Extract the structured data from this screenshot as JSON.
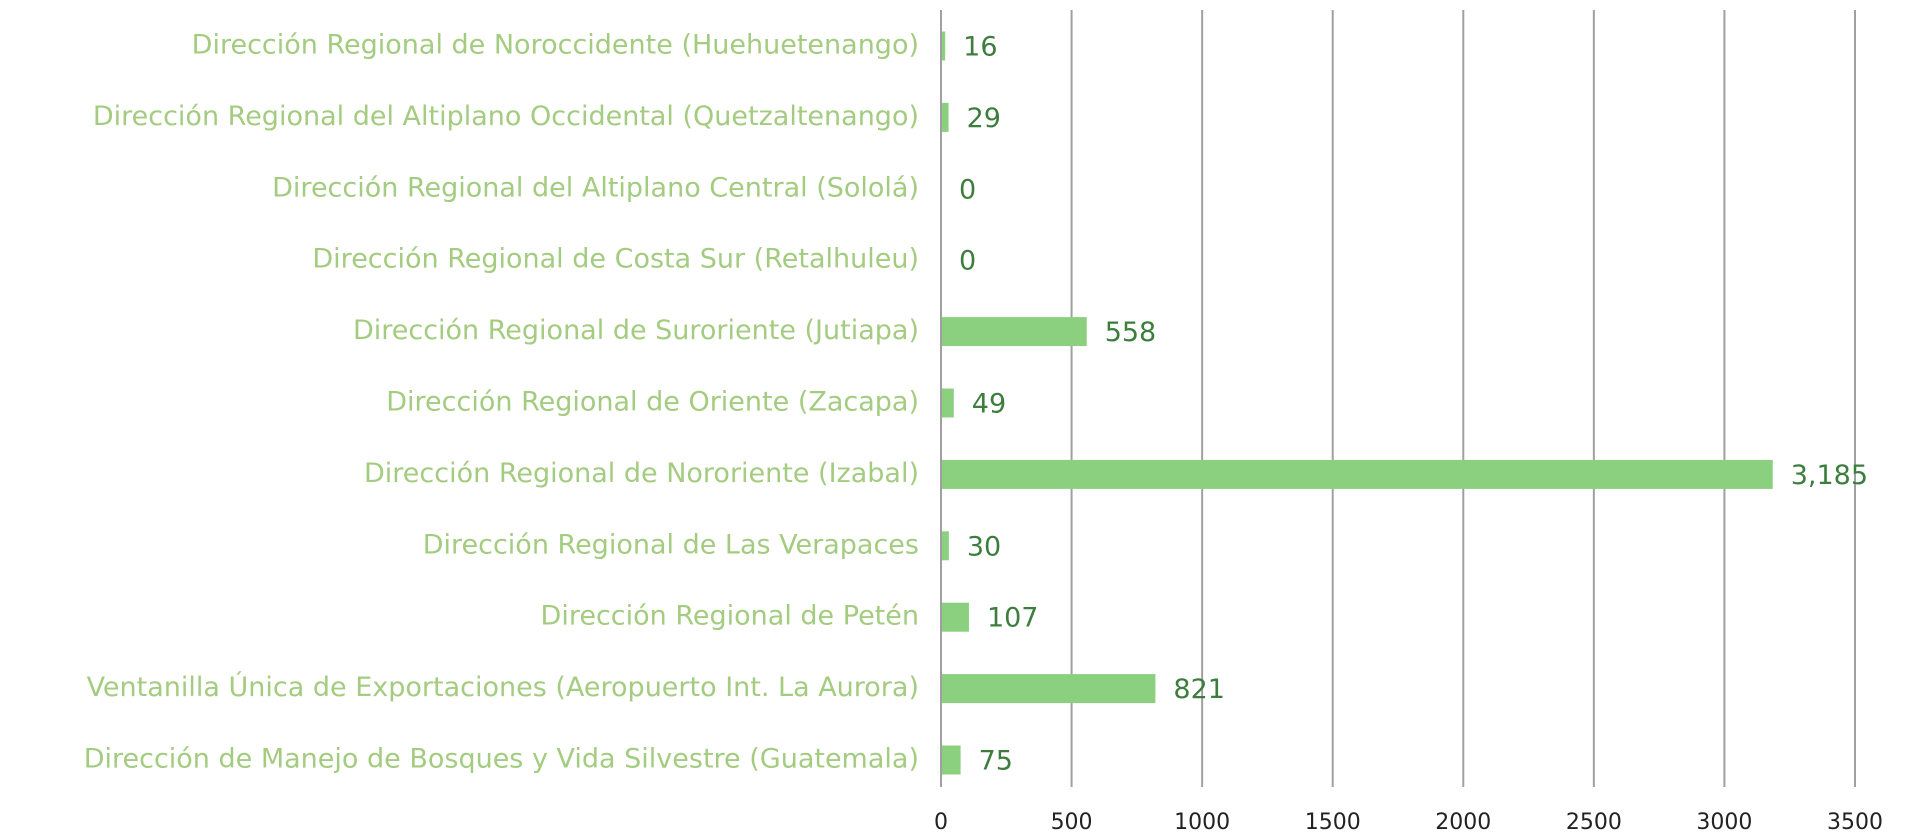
{
  "chart_data": {
    "type": "bar",
    "orientation": "horizontal",
    "categories": [
      "Dirección Regional de Noroccidente (Huehuetenango)",
      "Dirección Regional del Altiplano Occidental (Quetzaltenango)",
      "Dirección Regional del Altiplano Central (Sololá)",
      "Dirección Regional de Costa Sur (Retalhuleu)",
      "Dirección Regional de Suroriente (Jutiapa)",
      "Dirección Regional de Oriente (Zacapa)",
      "Dirección Regional de Nororiente (Izabal)",
      "Dirección Regional de Las Verapaces",
      "Dirección Regional de Petén",
      "Ventanilla Única de Exportaciones (Aeropuerto Int. La Aurora)",
      "Dirección de Manejo de Bosques y Vida Silvestre (Guatemala)"
    ],
    "values": [
      16,
      29,
      0,
      0,
      558,
      49,
      3185,
      30,
      107,
      821,
      75
    ],
    "value_labels": [
      "16",
      "29",
      "0",
      "0",
      "558",
      "49",
      "3,185",
      "30",
      "107",
      "821",
      "75"
    ],
    "color": "#8bd07f",
    "xlim": [
      0,
      3500
    ],
    "xticks": [
      0,
      500,
      1000,
      1500,
      2000,
      2500,
      3000,
      3500
    ],
    "grid": true
  }
}
